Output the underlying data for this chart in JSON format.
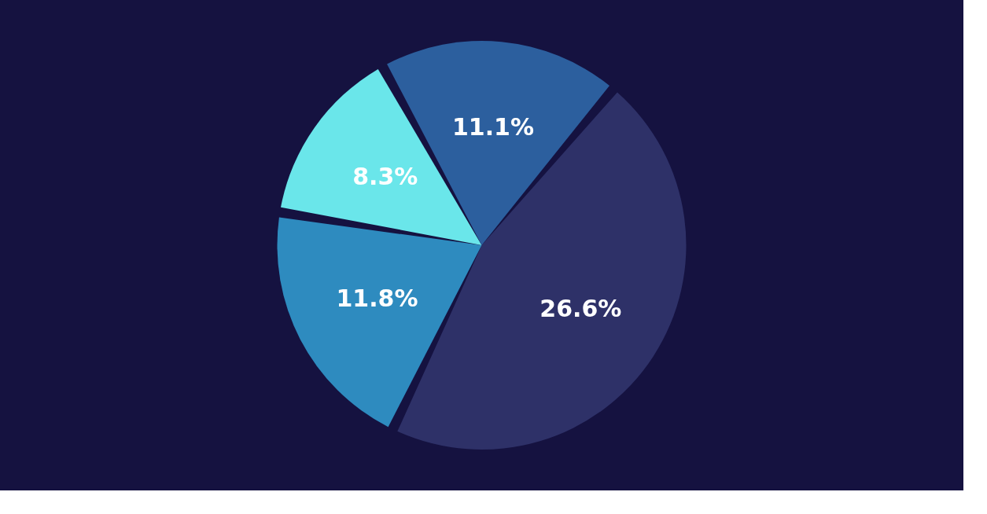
{
  "chart_data": {
    "type": "pie",
    "categories": [
      null,
      null,
      null,
      null
    ],
    "values": [
      26.6,
      11.8,
      8.3,
      11.1
    ],
    "colors": [
      "#2e3168",
      "#2e8bbf",
      "#6ae6ea",
      "#2c5f9e"
    ],
    "value_labels": [
      "26.6%",
      "11.8%",
      "8.3%",
      "11.1%"
    ],
    "legend": false
  }
}
